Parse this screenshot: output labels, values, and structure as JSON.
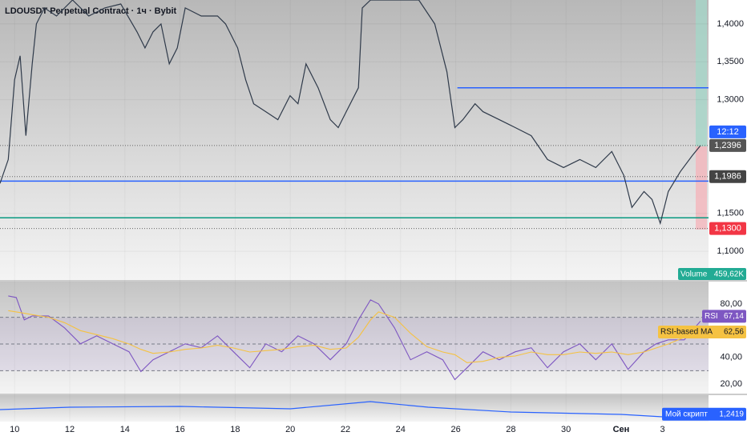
{
  "chart_data": [
    {
      "type": "line",
      "title": "LDOUSDT Perpetual Contract · 1ч · Bybit",
      "color": "#2f3a4a",
      "x": [
        -0.53,
        -0.23,
        0,
        0.2,
        0.41,
        0.64,
        0.79,
        1.08,
        1.52,
        2.1,
        2.69,
        3.27,
        3.85,
        4.44,
        4.73,
        5.02,
        5.31,
        5.61,
        5.9,
        6.19,
        6.77,
        7.36,
        7.65,
        8.09,
        8.38,
        8.67,
        9.11,
        9.55,
        9.99,
        10.28,
        10.57,
        11.01,
        11.45,
        11.74,
        12.03,
        12.47,
        12.61,
        12.91,
        14.07,
        14.66,
        15.24,
        15.68,
        15.97,
        16.26,
        16.7,
        16.99,
        17.58,
        18.16,
        18.74,
        19.33,
        19.91,
        20.5,
        21.08,
        21.66,
        22.1,
        22.39,
        22.83,
        23.12,
        23.42,
        23.71,
        24.15,
        24.58,
        24.88
      ],
      "values": [
        1.1895,
        1.2211,
        1.3263,
        1.3579,
        1.2526,
        1.3474,
        1.4,
        1.4211,
        1.4105,
        1.4316,
        1.4105,
        1.4211,
        1.4263,
        1.3895,
        1.3684,
        1.3895,
        1.4,
        1.3474,
        1.3684,
        1.4211,
        1.4105,
        1.4105,
        1.4,
        1.3684,
        1.3263,
        1.2947,
        1.2842,
        1.2737,
        1.3053,
        1.2947,
        1.3474,
        1.3158,
        1.2737,
        1.2632,
        1.2842,
        1.3158,
        1.4211,
        1.4316,
        1.4316,
        1.4316,
        1.4,
        1.3368,
        1.2632,
        1.2737,
        1.2947,
        1.2842,
        1.2737,
        1.2632,
        1.2526,
        1.2211,
        1.2105,
        1.2211,
        1.2105,
        1.2316,
        1.2,
        1.1579,
        1.1789,
        1.1684,
        1.1368,
        1.1789,
        1.2053,
        1.2263,
        1.2396
      ],
      "xlim": [
        -0.53,
        25.17
      ],
      "xticks": [
        {
          "value": 0,
          "label": "10"
        },
        {
          "value": 2,
          "label": "12"
        },
        {
          "value": 4,
          "label": "14"
        },
        {
          "value": 6,
          "label": "16"
        },
        {
          "value": 8,
          "label": "18"
        },
        {
          "value": 10,
          "label": "20"
        },
        {
          "value": 12,
          "label": "22"
        },
        {
          "value": 14,
          "label": "24"
        },
        {
          "value": 16,
          "label": "26"
        },
        {
          "value": 18,
          "label": "28"
        },
        {
          "value": 20,
          "label": "30"
        },
        {
          "value": 22,
          "label": "Сен"
        },
        {
          "value": 23.5,
          "label": "3"
        }
      ],
      "ylim": [
        1.0621,
        1.4316
      ],
      "yticks": [
        {
          "value": 1.1,
          "label": "1,1000"
        },
        {
          "value": 1.15,
          "label": "1,1500"
        },
        {
          "value": 1.3,
          "label": "1,3000"
        },
        {
          "value": 1.35,
          "label": "1,3500"
        },
        {
          "value": 1.4,
          "label": "1,4000"
        }
      ],
      "levels": [
        {
          "value": 1.3158,
          "color": "#2962ff",
          "start": 16.06
        },
        {
          "value": 1.1926,
          "color": "#2962ff",
          "start": -0.53
        },
        {
          "value": 1.1442,
          "color": "#089981",
          "start": -0.53
        }
      ],
      "price_tags": [
        {
          "value": 1.2396,
          "label": "1,2396",
          "color": "#555"
        },
        {
          "value": 1.1986,
          "label": "1,1986",
          "color": "#444"
        },
        {
          "value": 1.13,
          "label": "1,1300",
          "color": "#f23645"
        }
      ],
      "countdown": "12:12",
      "volume": {
        "name": "Volume",
        "label": "459,62K"
      }
    },
    {
      "type": "line",
      "name": "RSI",
      "color": "#7e57c2",
      "x": [
        -0.23,
        0.06,
        0.35,
        0.64,
        1.23,
        1.81,
        2.39,
        2.98,
        3.56,
        4.15,
        4.58,
        5.02,
        5.61,
        6.19,
        6.77,
        7.36,
        7.94,
        8.53,
        9.11,
        9.69,
        10.28,
        10.86,
        11.45,
        12.03,
        12.47,
        12.91,
        13.2,
        13.78,
        14.36,
        14.95,
        15.53,
        15.97,
        16.41,
        16.99,
        17.58,
        18.16,
        18.74,
        19.33,
        19.91,
        20.5,
        21.08,
        21.66,
        22.25,
        22.83,
        23.27,
        23.71,
        24.29,
        24.88
      ],
      "series": [
        {
          "name": "RSI",
          "color": "#7e57c2",
          "label": "67,14",
          "values": [
            86.0,
            84.8,
            68.1,
            71.0,
            71.0,
            62.1,
            50.1,
            56.1,
            50.1,
            44.2,
            29.3,
            38.2,
            44.2,
            50.1,
            47.2,
            56.1,
            44.2,
            32.2,
            50.1,
            44.2,
            56.1,
            50.1,
            38.2,
            50.1,
            68.1,
            83.0,
            80,
            62.1,
            38.2,
            44.2,
            38.2,
            23.3,
            32.2,
            44.2,
            38.2,
            44.2,
            47.2,
            32.2,
            44.2,
            50.1,
            38.2,
            50.1,
            31.0,
            44.2,
            50.1,
            53.1,
            53.1,
            67.14
          ]
        },
        {
          "name": "RSI-based MA",
          "color": "#f5c242",
          "label": "62,56",
          "values": [
            75,
            74,
            73,
            72,
            70,
            66,
            60,
            57,
            54,
            50,
            46,
            43,
            44,
            46,
            47,
            49,
            47,
            44,
            45,
            46,
            48,
            49,
            46,
            47,
            55,
            68,
            74,
            70,
            58,
            48,
            44,
            42,
            36,
            37,
            40,
            41,
            44,
            42,
            42,
            44,
            43,
            44,
            42,
            44,
            47,
            50,
            55,
            62.56
          ]
        }
      ],
      "ylim": [
        12.84,
        96.72
      ],
      "yticks": [
        {
          "value": 20,
          "label": "20,00"
        },
        {
          "value": 40,
          "label": "40,00"
        },
        {
          "value": 80,
          "label": "80,00"
        }
      ],
      "bands": [
        70,
        50,
        30
      ]
    },
    {
      "type": "line",
      "name": "Мой скрипт",
      "color": "#2962ff",
      "label": "1,2419",
      "x": [
        -0.53,
        2,
        6,
        10,
        12.9,
        15,
        18,
        22,
        23.5,
        24.88
      ],
      "values": [
        1.3,
        1.33,
        1.34,
        1.31,
        1.4,
        1.33,
        1.27,
        1.24,
        1.21,
        1.2419
      ],
      "ylim": [
        1.15,
        1.45
      ]
    }
  ]
}
